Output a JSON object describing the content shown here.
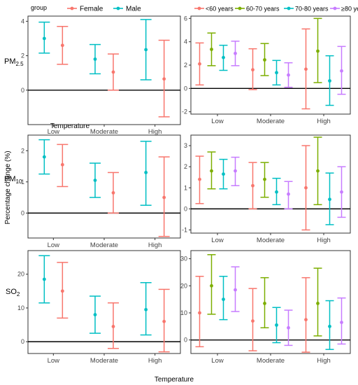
{
  "figure": {
    "ylabel": "Percentage change (%)",
    "xlabel": "Temperature",
    "inner_xlabel": "Temperature"
  },
  "legend_sex": {
    "title": "group",
    "entries": [
      {
        "name": "Female",
        "color": "#F8766D"
      },
      {
        "name": "Male",
        "color": "#00BFC4"
      }
    ]
  },
  "legend_age": {
    "entries": [
      {
        "name": "<60 years",
        "color": "#F8766D"
      },
      {
        "name": "60-70 years",
        "color": "#7CAE00"
      },
      {
        "name": "70-80 years",
        "color": "#00BFC4"
      },
      {
        "name": "≥80 years",
        "color": "#C77CFF"
      }
    ]
  },
  "chart_data": [
    {
      "type": "errorbar",
      "pollutant": "PM",
      "pollutant_sub": "2.5",
      "categories": [
        "Low",
        "Moderate",
        "High"
      ],
      "ylim": [
        -2,
        4.3
      ],
      "yticks": [
        0,
        2,
        4
      ],
      "series": [
        {
          "name": "Male",
          "color": "#00BFC4",
          "mean": [
            3.0,
            1.8,
            2.35
          ],
          "lower": [
            2.15,
            0.95,
            0.6
          ],
          "upper": [
            3.95,
            2.65,
            4.1
          ]
        },
        {
          "name": "Female",
          "color": "#F8766D",
          "mean": [
            2.6,
            1.05,
            0.65
          ],
          "lower": [
            1.5,
            0.0,
            -1.55
          ],
          "upper": [
            3.7,
            2.1,
            2.9
          ]
        }
      ]
    },
    {
      "type": "errorbar",
      "pollutant": "PM",
      "pollutant_sub": "2.5",
      "categories": [
        "Low",
        "Moderate",
        "High"
      ],
      "ylim": [
        -2.2,
        6.2
      ],
      "yticks": [
        -2,
        0,
        2,
        4,
        6
      ],
      "series": [
        {
          "name": "<60 years",
          "color": "#F8766D",
          "mean": [
            2.1,
            1.6,
            1.65
          ],
          "lower": [
            0.3,
            -0.1,
            -1.75
          ],
          "upper": [
            3.9,
            3.4,
            5.1
          ]
        },
        {
          "name": "60-70 years",
          "color": "#7CAE00",
          "mean": [
            3.35,
            2.45,
            3.2
          ],
          "lower": [
            1.95,
            1.1,
            0.5
          ],
          "upper": [
            4.75,
            3.85,
            6.0
          ]
        },
        {
          "name": "70-80 years",
          "color": "#00BFC4",
          "mean": [
            2.65,
            1.35,
            0.65
          ],
          "lower": [
            1.55,
            0.3,
            -1.45
          ],
          "upper": [
            3.7,
            2.4,
            2.8
          ]
        },
        {
          "name": "≥80 years",
          "color": "#C77CFF",
          "mean": [
            3.0,
            1.15,
            1.5
          ],
          "lower": [
            1.95,
            0.1,
            -0.5
          ],
          "upper": [
            4.05,
            2.2,
            3.6
          ]
        }
      ]
    },
    {
      "type": "errorbar",
      "pollutant": "PM",
      "pollutant_sub": "10",
      "categories": [
        "Low",
        "Moderate",
        "High"
      ],
      "ylim": [
        -0.8,
        2.5
      ],
      "yticks": [
        0,
        1,
        2
      ],
      "series": [
        {
          "name": "Male",
          "color": "#00BFC4",
          "mean": [
            1.8,
            1.05,
            1.3
          ],
          "lower": [
            1.25,
            0.5,
            0.25
          ],
          "upper": [
            2.35,
            1.6,
            2.3
          ]
        },
        {
          "name": "Female",
          "color": "#F8766D",
          "mean": [
            1.55,
            0.65,
            0.5
          ],
          "lower": [
            0.85,
            0.0,
            -0.75
          ],
          "upper": [
            2.2,
            1.3,
            1.8
          ]
        }
      ]
    },
    {
      "type": "errorbar",
      "pollutant": "PM",
      "pollutant_sub": "10",
      "categories": [
        "Low",
        "Moderate",
        "High"
      ],
      "ylim": [
        -1.15,
        3.5
      ],
      "yticks": [
        -1,
        0,
        1,
        2,
        3
      ],
      "series": [
        {
          "name": "<60 years",
          "color": "#F8766D",
          "mean": [
            1.4,
            1.1,
            1.0
          ],
          "lower": [
            0.25,
            0.0,
            -1.0
          ],
          "upper": [
            2.5,
            2.2,
            3.0
          ]
        },
        {
          "name": "60-70 years",
          "color": "#7CAE00",
          "mean": [
            1.8,
            1.4,
            1.8
          ],
          "lower": [
            0.95,
            0.55,
            0.2
          ],
          "upper": [
            2.7,
            2.2,
            3.4
          ]
        },
        {
          "name": "70-80 years",
          "color": "#00BFC4",
          "mean": [
            1.65,
            0.8,
            0.45
          ],
          "lower": [
            0.95,
            0.2,
            -0.75
          ],
          "upper": [
            2.35,
            1.45,
            1.7
          ]
        },
        {
          "name": "≥80 years",
          "color": "#C77CFF",
          "mean": [
            1.8,
            0.7,
            0.8
          ],
          "lower": [
            1.1,
            0.0,
            -0.4
          ],
          "upper": [
            2.45,
            1.3,
            2.0
          ]
        }
      ]
    },
    {
      "type": "errorbar",
      "pollutant": "SO",
      "pollutant_sub": "2",
      "categories": [
        "Low",
        "Moderate",
        "High"
      ],
      "ylim": [
        -3.5,
        27
      ],
      "yticks": [
        0,
        10,
        20
      ],
      "series": [
        {
          "name": "Male",
          "color": "#00BFC4",
          "mean": [
            18.5,
            8.0,
            9.5
          ],
          "lower": [
            11.5,
            2.5,
            2.0
          ],
          "upper": [
            25.5,
            13.5,
            17.5
          ]
        },
        {
          "name": "Female",
          "color": "#F8766D",
          "mean": [
            15.0,
            4.5,
            6.0
          ],
          "lower": [
            7.0,
            -2.0,
            -3.0
          ],
          "upper": [
            23.5,
            11.5,
            15.5
          ]
        }
      ]
    },
    {
      "type": "errorbar",
      "pollutant": "SO",
      "pollutant_sub": "2",
      "categories": [
        "Low",
        "Moderate",
        "High"
      ],
      "ylim": [
        -5,
        33
      ],
      "yticks": [
        0,
        10,
        20,
        30
      ],
      "series": [
        {
          "name": "<60 years",
          "color": "#F8766D",
          "mean": [
            10.0,
            7.0,
            7.5
          ],
          "lower": [
            -2.5,
            -4.0,
            -4.5
          ],
          "upper": [
            23.5,
            19.0,
            23.0
          ]
        },
        {
          "name": "60-70 years",
          "color": "#7CAE00",
          "mean": [
            20.0,
            13.5,
            13.5
          ],
          "lower": [
            9.5,
            4.5,
            1.5
          ],
          "upper": [
            31.5,
            23.0,
            26.5
          ]
        },
        {
          "name": "70-80 years",
          "color": "#00BFC4",
          "mean": [
            15.0,
            5.5,
            5.0
          ],
          "lower": [
            7.5,
            -1.0,
            -3.5
          ],
          "upper": [
            23.5,
            12.0,
            14.5
          ]
        },
        {
          "name": "≥80 years",
          "color": "#C77CFF",
          "mean": [
            18.5,
            4.5,
            6.5
          ],
          "lower": [
            10.5,
            -2.0,
            -1.5
          ],
          "upper": [
            27.0,
            11.0,
            15.5
          ]
        }
      ]
    }
  ]
}
